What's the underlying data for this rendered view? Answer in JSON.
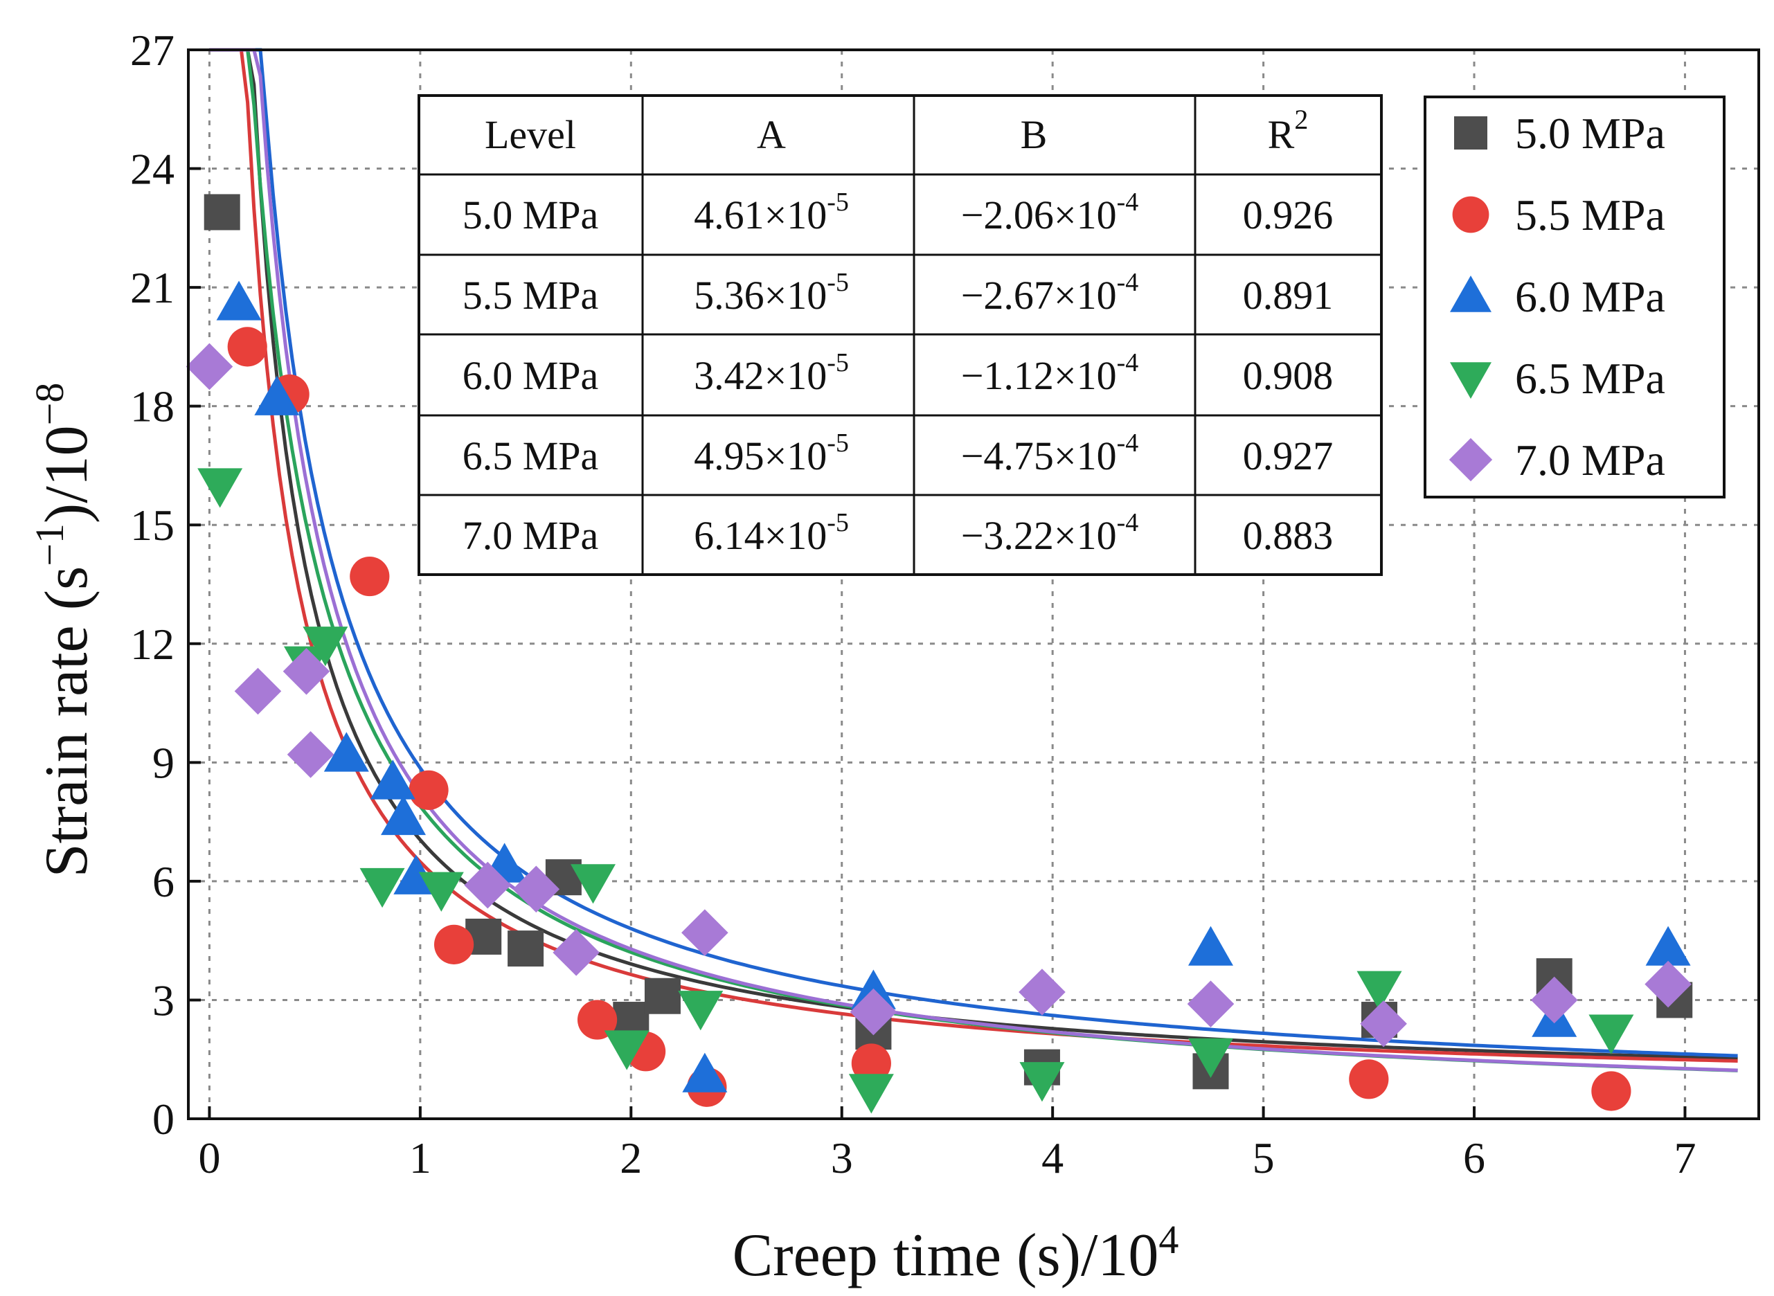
{
  "chart_data": {
    "type": "scatter",
    "xlabel": "Creep time (s)/10",
    "xlabel_sup": "4",
    "ylabel_parts": {
      "pre": "Strain rate (s",
      "sup1": "−1",
      "mid": ")/10",
      "sup2": "−8"
    },
    "xlim": [
      -0.1,
      7.35
    ],
    "ylim": [
      0,
      27
    ],
    "xticks": [
      0,
      1,
      2,
      3,
      4,
      5,
      6,
      7
    ],
    "yticks": [
      0,
      3,
      6,
      9,
      12,
      15,
      18,
      21,
      24,
      27
    ],
    "grid": true,
    "legend_position": "top-right",
    "series": [
      {
        "name": "5.0 MPa",
        "color": "#4d4d4d",
        "marker": "square",
        "fit_color": "#3a3a3a",
        "fit": {
          "a": 6.8,
          "b": 0.055,
          "c": 0.6
        },
        "points": [
          [
            0.06,
            22.9
          ],
          [
            1.3,
            4.6
          ],
          [
            1.5,
            4.3
          ],
          [
            1.68,
            6.1
          ],
          [
            2.0,
            2.5
          ],
          [
            2.15,
            3.1
          ],
          [
            3.15,
            2.2
          ],
          [
            3.95,
            1.3
          ],
          [
            4.75,
            1.2
          ],
          [
            5.55,
            2.5
          ],
          [
            6.38,
            3.6
          ],
          [
            6.95,
            3.0
          ]
        ]
      },
      {
        "name": "5.5 MPa",
        "color": "#e8403a",
        "marker": "circle",
        "fit_color": "#d93a3a",
        "fit": {
          "a": 6.3,
          "b": 0.07,
          "c": 0.6
        },
        "points": [
          [
            0.18,
            19.5
          ],
          [
            0.38,
            18.3
          ],
          [
            0.76,
            13.7
          ],
          [
            1.04,
            8.3
          ],
          [
            1.16,
            4.4
          ],
          [
            1.84,
            2.5
          ],
          [
            2.07,
            1.7
          ],
          [
            2.36,
            0.8
          ],
          [
            3.14,
            1.4
          ],
          [
            5.5,
            1.0
          ],
          [
            6.65,
            0.7
          ]
        ]
      },
      {
        "name": "6.0 MPa",
        "color": "#1e6fd9",
        "marker": "triangle-up",
        "fit_color": "#1f64d0",
        "fit": {
          "a": 9.5,
          "b": 0.11,
          "c": 0.3
        },
        "points": [
          [
            0.14,
            20.6
          ],
          [
            0.32,
            18.2
          ],
          [
            0.65,
            9.2
          ],
          [
            0.87,
            8.5
          ],
          [
            0.92,
            7.6
          ],
          [
            0.98,
            6.1
          ],
          [
            1.4,
            6.4
          ],
          [
            2.35,
            1.1
          ],
          [
            3.15,
            3.2
          ],
          [
            4.75,
            4.3
          ],
          [
            6.38,
            2.5
          ],
          [
            6.92,
            4.3
          ]
        ]
      },
      {
        "name": "6.5 MPa",
        "color": "#2eab5a",
        "marker": "triangle-down",
        "fit_color": "#2aa45c",
        "fit": {
          "a": 9.0,
          "b": 0.14,
          "c": 0.0
        },
        "points": [
          [
            0.05,
            16.0
          ],
          [
            0.46,
            11.5
          ],
          [
            0.55,
            12.0
          ],
          [
            0.82,
            5.9
          ],
          [
            1.1,
            5.8
          ],
          [
            1.82,
            6.0
          ],
          [
            1.98,
            1.8
          ],
          [
            2.33,
            2.8
          ],
          [
            3.14,
            0.7
          ],
          [
            3.95,
            1.0
          ],
          [
            4.75,
            1.6
          ],
          [
            5.55,
            3.3
          ],
          [
            6.65,
            2.2
          ]
        ]
      },
      {
        "name": "7.0 MPa",
        "color": "#a87ad6",
        "marker": "diamond",
        "fit_color": "#9b6fd4",
        "fit": {
          "a": 9.0,
          "b": 0.1,
          "c": 0.0
        },
        "points": [
          [
            0.0,
            19.0
          ],
          [
            0.23,
            10.8
          ],
          [
            0.46,
            11.3
          ],
          [
            0.48,
            9.2
          ],
          [
            1.32,
            5.9
          ],
          [
            1.55,
            5.8
          ],
          [
            1.74,
            4.2
          ],
          [
            2.35,
            4.7
          ],
          [
            3.15,
            2.7
          ],
          [
            3.95,
            3.2
          ],
          [
            4.75,
            2.9
          ],
          [
            5.57,
            2.4
          ],
          [
            6.38,
            3.0
          ],
          [
            6.92,
            3.4
          ]
        ]
      }
    ],
    "table": {
      "headers": [
        "Level",
        "A",
        "B",
        "R"
      ],
      "header_sup": "2",
      "rows": [
        {
          "level": "5.0 MPa",
          "a_base": "4.61×10",
          "a_exp": "-5",
          "b_base": "−2.06×10",
          "b_exp": "-4",
          "r2": "0.926"
        },
        {
          "level": "5.5 MPa",
          "a_base": "5.36×10",
          "a_exp": "-5",
          "b_base": "−2.67×10",
          "b_exp": "-4",
          "r2": "0.891"
        },
        {
          "level": "6.0 MPa",
          "a_base": "3.42×10",
          "a_exp": "-5",
          "b_base": "−1.12×10",
          "b_exp": "-4",
          "r2": "0.908"
        },
        {
          "level": "6.5 MPa",
          "a_base": "4.95×10",
          "a_exp": "-5",
          "b_base": "−4.75×10",
          "b_exp": "-4",
          "r2": "0.927"
        },
        {
          "level": "7.0 MPa",
          "a_base": "6.14×10",
          "a_exp": "-5",
          "b_base": "−3.22×10",
          "b_exp": "-4",
          "r2": "0.883"
        }
      ]
    }
  }
}
